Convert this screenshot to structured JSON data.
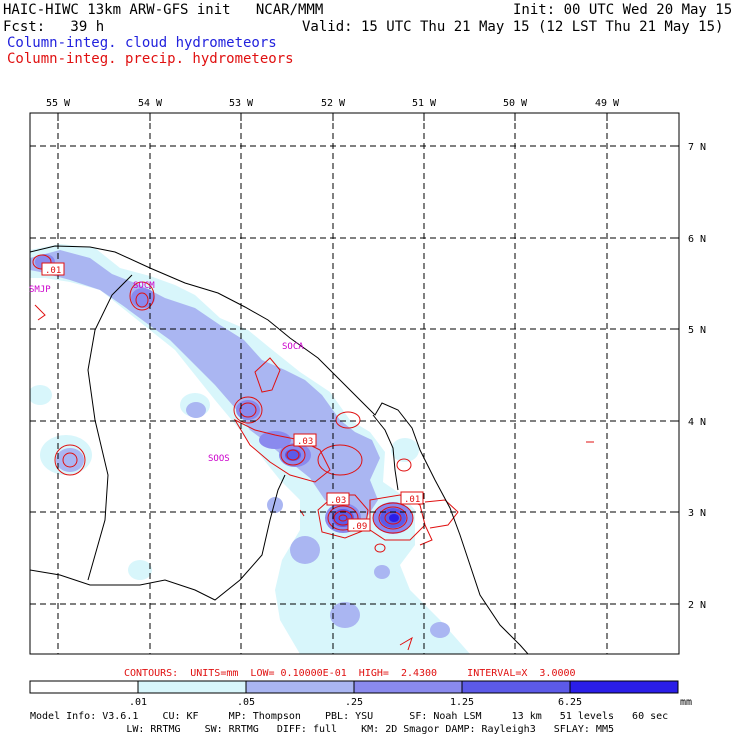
{
  "header": {
    "title": "HAIC-HIWC 13km ARW-GFS init   NCAR/MMM",
    "init": "Init: 00 UTC Wed 20 May 15",
    "fcst": "Fcst:   39 h",
    "valid": "Valid: 15 UTC Thu 21 May 15 (12 LST Thu 21 May 15)",
    "field1": "Column-integ. cloud hydrometeors",
    "field2": "Column-integ. precip. hydrometeors"
  },
  "map": {
    "lon_labels": [
      "55 W",
      "54 W",
      "53 W",
      "52 W",
      "51 W",
      "50 W",
      "49 W"
    ],
    "lat_labels": [
      "7 N",
      "6 N",
      "5 N",
      "4 N",
      "3 N",
      "2 N"
    ],
    "stations": [
      "SMJP",
      "SOCM",
      "SOCA",
      "SOOS"
    ],
    "contour_labels": [
      ".01",
      ".03",
      ".03",
      ".09",
      ".01"
    ]
  },
  "contours_info": "CONTOURS:  UNITS=mm  LOW= 0.10000E-01  HIGH=  2.4300     INTERVAL=X  3.0000",
  "colorbar": {
    "ticks": [
      ".01",
      ".05",
      ".25",
      "1.25",
      "6.25"
    ],
    "unit": "mm",
    "colors": [
      "#ffffff",
      "#d8f6fb",
      "#aab6f2",
      "#8a8aee",
      "#5c5ae8",
      "#2a1ee8"
    ]
  },
  "model_info": {
    "line1": "Model Info: V3.6.1    CU: KF     MP: Thompson    PBL: YSU      SF: Noah LSM     13 km   51 levels   60 sec",
    "line2": "                LW: RRTMG    SW: RRTMG   DIFF: full    KM: 2D Smagor DAMP: Rayleigh3   SFLAY: MM5"
  }
}
